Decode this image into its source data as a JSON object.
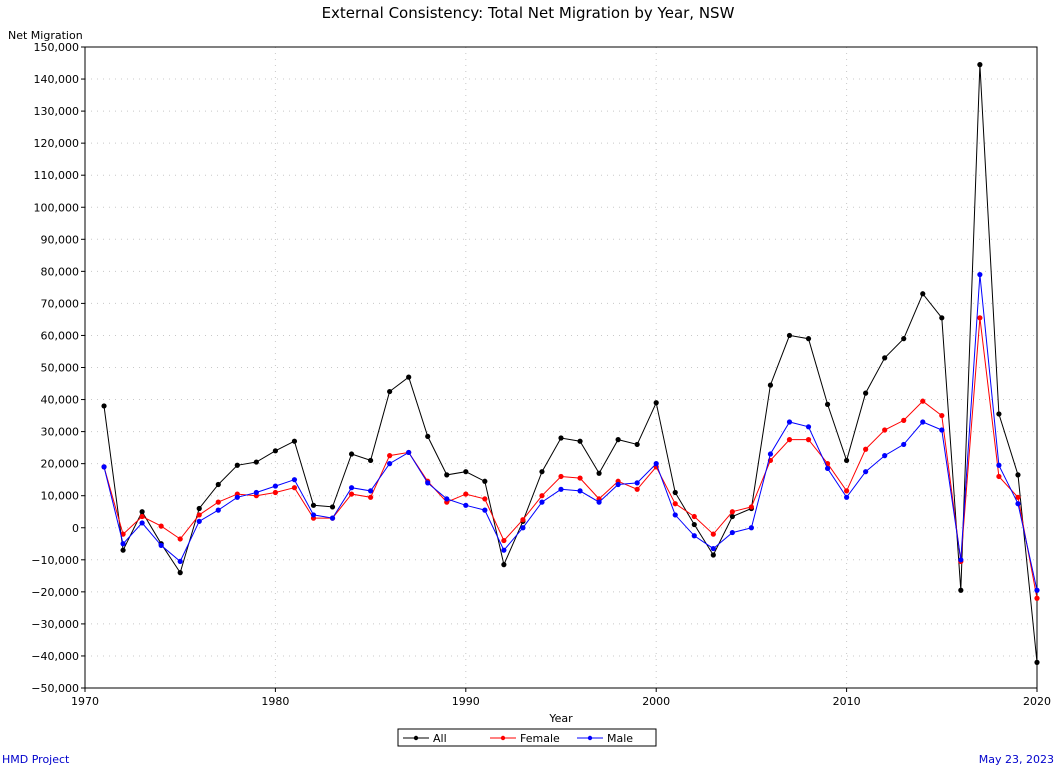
{
  "chart_data": {
    "type": "line",
    "title": "External Consistency: Total Net Migration by Year, NSW",
    "xlabel": "Year",
    "ylabel": "Net Migration",
    "xlim": [
      1970,
      2020
    ],
    "ylim": [
      -50000,
      150000
    ],
    "x_ticks": [
      1970,
      1980,
      1990,
      2000,
      2010,
      2020
    ],
    "y_ticks": [
      -50000,
      -40000,
      -30000,
      -20000,
      -10000,
      0,
      10000,
      20000,
      30000,
      40000,
      50000,
      60000,
      70000,
      80000,
      90000,
      100000,
      110000,
      120000,
      130000,
      140000,
      150000
    ],
    "y_tick_labels": [
      "−50,000",
      "−40,000",
      "−30,000",
      "−20,000",
      "−10,000",
      "0",
      "10,000",
      "20,000",
      "30,000",
      "40,000",
      "50,000",
      "60,000",
      "70,000",
      "80,000",
      "90,000",
      "100,000",
      "110,000",
      "120,000",
      "130,000",
      "140,000",
      "150,000"
    ],
    "grid": true,
    "legend_position": "bottom-center",
    "x": [
      1971,
      1972,
      1973,
      1974,
      1975,
      1976,
      1977,
      1978,
      1979,
      1980,
      1981,
      1982,
      1983,
      1984,
      1985,
      1986,
      1987,
      1988,
      1989,
      1990,
      1991,
      1992,
      1993,
      1994,
      1995,
      1996,
      1997,
      1998,
      1999,
      2000,
      2001,
      2002,
      2003,
      2004,
      2005,
      2006,
      2007,
      2008,
      2009,
      2010,
      2011,
      2012,
      2013,
      2014,
      2015,
      2016,
      2017,
      2018,
      2019,
      2020
    ],
    "series": [
      {
        "name": "All",
        "color": "#000000",
        "values": [
          38000,
          -7000,
          5000,
          -5000,
          -14000,
          6000,
          13500,
          19500,
          20500,
          24000,
          27000,
          7000,
          6500,
          23000,
          21000,
          42500,
          47000,
          28500,
          16500,
          17500,
          14500,
          -11500,
          2000,
          17500,
          28000,
          27000,
          17000,
          27500,
          26000,
          39000,
          11000,
          1000,
          -8500,
          3500,
          6000,
          44500,
          60000,
          59000,
          38500,
          21000,
          42000,
          53000,
          59000,
          73000,
          65500,
          -19500,
          144500,
          35500,
          16500,
          -42000
        ]
      },
      {
        "name": "Female",
        "color": "#ff0000",
        "values": [
          19000,
          -2000,
          3500,
          500,
          -3500,
          4000,
          8000,
          10500,
          10000,
          11000,
          12500,
          3000,
          3000,
          10500,
          9500,
          22500,
          23500,
          14500,
          8000,
          10500,
          9000,
          -4000,
          2500,
          10000,
          16000,
          15500,
          9000,
          14500,
          12000,
          19000,
          7500,
          3500,
          -2000,
          5000,
          6500,
          21000,
          27500,
          27500,
          20000,
          11500,
          24500,
          30500,
          33500,
          39500,
          35000,
          -10500,
          65500,
          16000,
          9500,
          -22000
        ]
      },
      {
        "name": "Male",
        "color": "#0000ff",
        "values": [
          19000,
          -5000,
          1500,
          -5500,
          -10500,
          2000,
          5500,
          9500,
          11000,
          13000,
          15000,
          4000,
          3000,
          12500,
          11500,
          20000,
          23500,
          14000,
          9000,
          7000,
          5500,
          -7000,
          0,
          8000,
          12000,
          11500,
          8000,
          13500,
          14000,
          20000,
          4000,
          -2500,
          -6500,
          -1500,
          0,
          23000,
          33000,
          31500,
          18500,
          9500,
          17500,
          22500,
          26000,
          33000,
          30500,
          -10000,
          79000,
          19500,
          7500,
          -19500
        ]
      }
    ]
  },
  "footer": {
    "left": "HMD Project",
    "right": "May 23, 2023"
  }
}
